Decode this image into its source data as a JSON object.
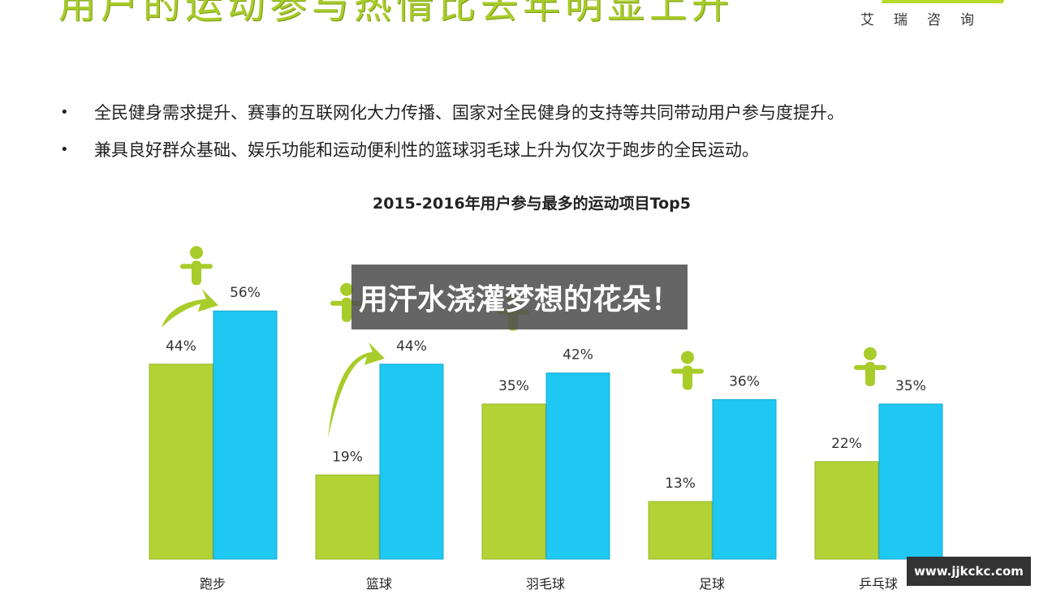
{
  "header": {
    "title": "用户的运动参与热情比去年明显上升",
    "brand": "艾瑞咨询"
  },
  "bullets": [
    "全民健身需求提升、赛事的互联网化大力传播、国家对全民健身的支持等共同带动用户参与度提升。",
    "兼具良好群众基础、娱乐功能和运动便利性的篮球羽毛球上升为仅次于跑步的全民运动。"
  ],
  "colors": {
    "green": "#b2d235",
    "blue": "#1ec8f2",
    "title_green": "#a8cc2a"
  },
  "chart_data": {
    "type": "bar",
    "title": "2015-2016年用户参与最多的运动项目Top5",
    "categories": [
      "跑步",
      "篮球",
      "羽毛球",
      "足球",
      "乒乓球"
    ],
    "series": [
      {
        "values": [
          44,
          19,
          35,
          13,
          22
        ],
        "color": "#b2d235"
      },
      {
        "values": [
          56,
          44,
          42,
          36,
          35
        ],
        "color": "#1ec8f2"
      }
    ],
    "value_suffix": "%",
    "ylim": [
      0,
      60
    ],
    "grid": false,
    "icons": [
      "runner-finish-icon",
      "basketball-player-icon",
      "badminton-player-icon",
      "soccer-player-icon",
      "table-tennis-player-icon"
    ]
  },
  "overlay": {
    "text": "用汗水浇灌梦想的花朵！"
  },
  "watermark": {
    "text": "www.jjkckc.com"
  }
}
